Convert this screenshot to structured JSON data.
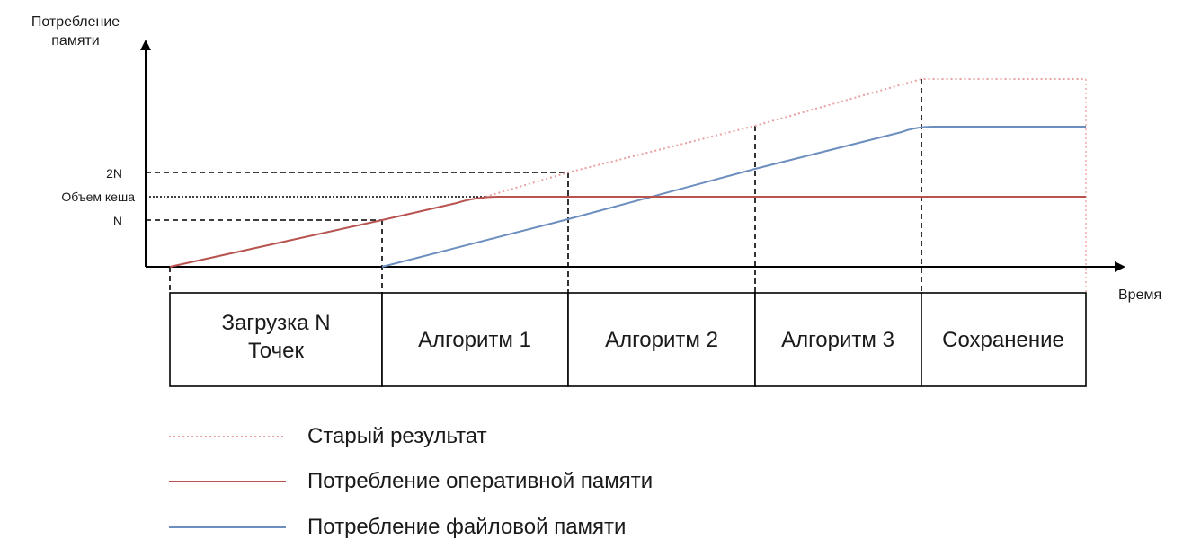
{
  "y_axis": {
    "label_line1": "Потребление",
    "label_line2": "памяти"
  },
  "x_axis": {
    "label": "Время"
  },
  "y_ticks": {
    "two_n": "2N",
    "cache": "Объем кеша",
    "n": "N"
  },
  "phases": [
    {
      "line1": "Загрузка N",
      "line2": "Точек"
    },
    {
      "line1": "Алгоритм 1",
      "line2": ""
    },
    {
      "line1": "Алгоритм 2",
      "line2": ""
    },
    {
      "line1": "Алгоритм 3",
      "line2": ""
    },
    {
      "line1": "Сохранение",
      "line2": ""
    }
  ],
  "legend": [
    {
      "label": "Старый результат",
      "color": "#e8a0a0",
      "style": "dotted"
    },
    {
      "label": "Потребление оперативной памяти",
      "color": "#b85450",
      "style": "solid"
    },
    {
      "label": "Потребление файловой памяти",
      "color": "#6c8ebf",
      "style": "solid"
    }
  ]
}
